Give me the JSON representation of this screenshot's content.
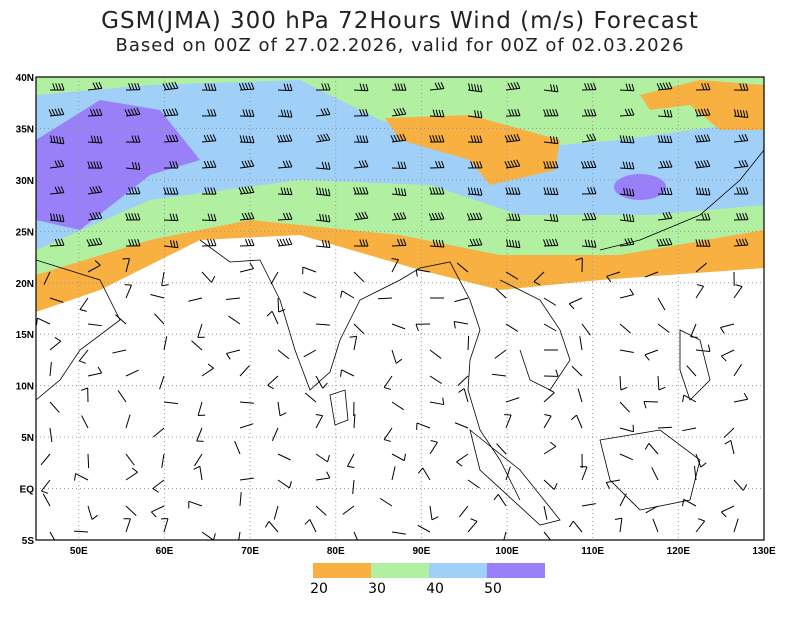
{
  "header": {
    "title": "GSM(JMA) 300 hPa 72Hours Wind (m/s) Forecast",
    "subtitle": "Based on 00Z of 27.02.2026, valid for 00Z of 02.03.2026"
  },
  "map": {
    "lat_labels": [
      "40N",
      "35N",
      "30N",
      "25N",
      "20N",
      "15N",
      "10N",
      "5N",
      "EQ",
      "5S"
    ],
    "lon_labels": [
      "50E",
      "60E",
      "70E",
      "80E",
      "90E",
      "100E",
      "110E",
      "120E",
      "130E"
    ]
  },
  "legend": {
    "levels": [
      20,
      30,
      40,
      50
    ],
    "colors": [
      "#f8b040",
      "#b0f0a0",
      "#a0d0f8",
      "#9a80f8"
    ]
  }
}
